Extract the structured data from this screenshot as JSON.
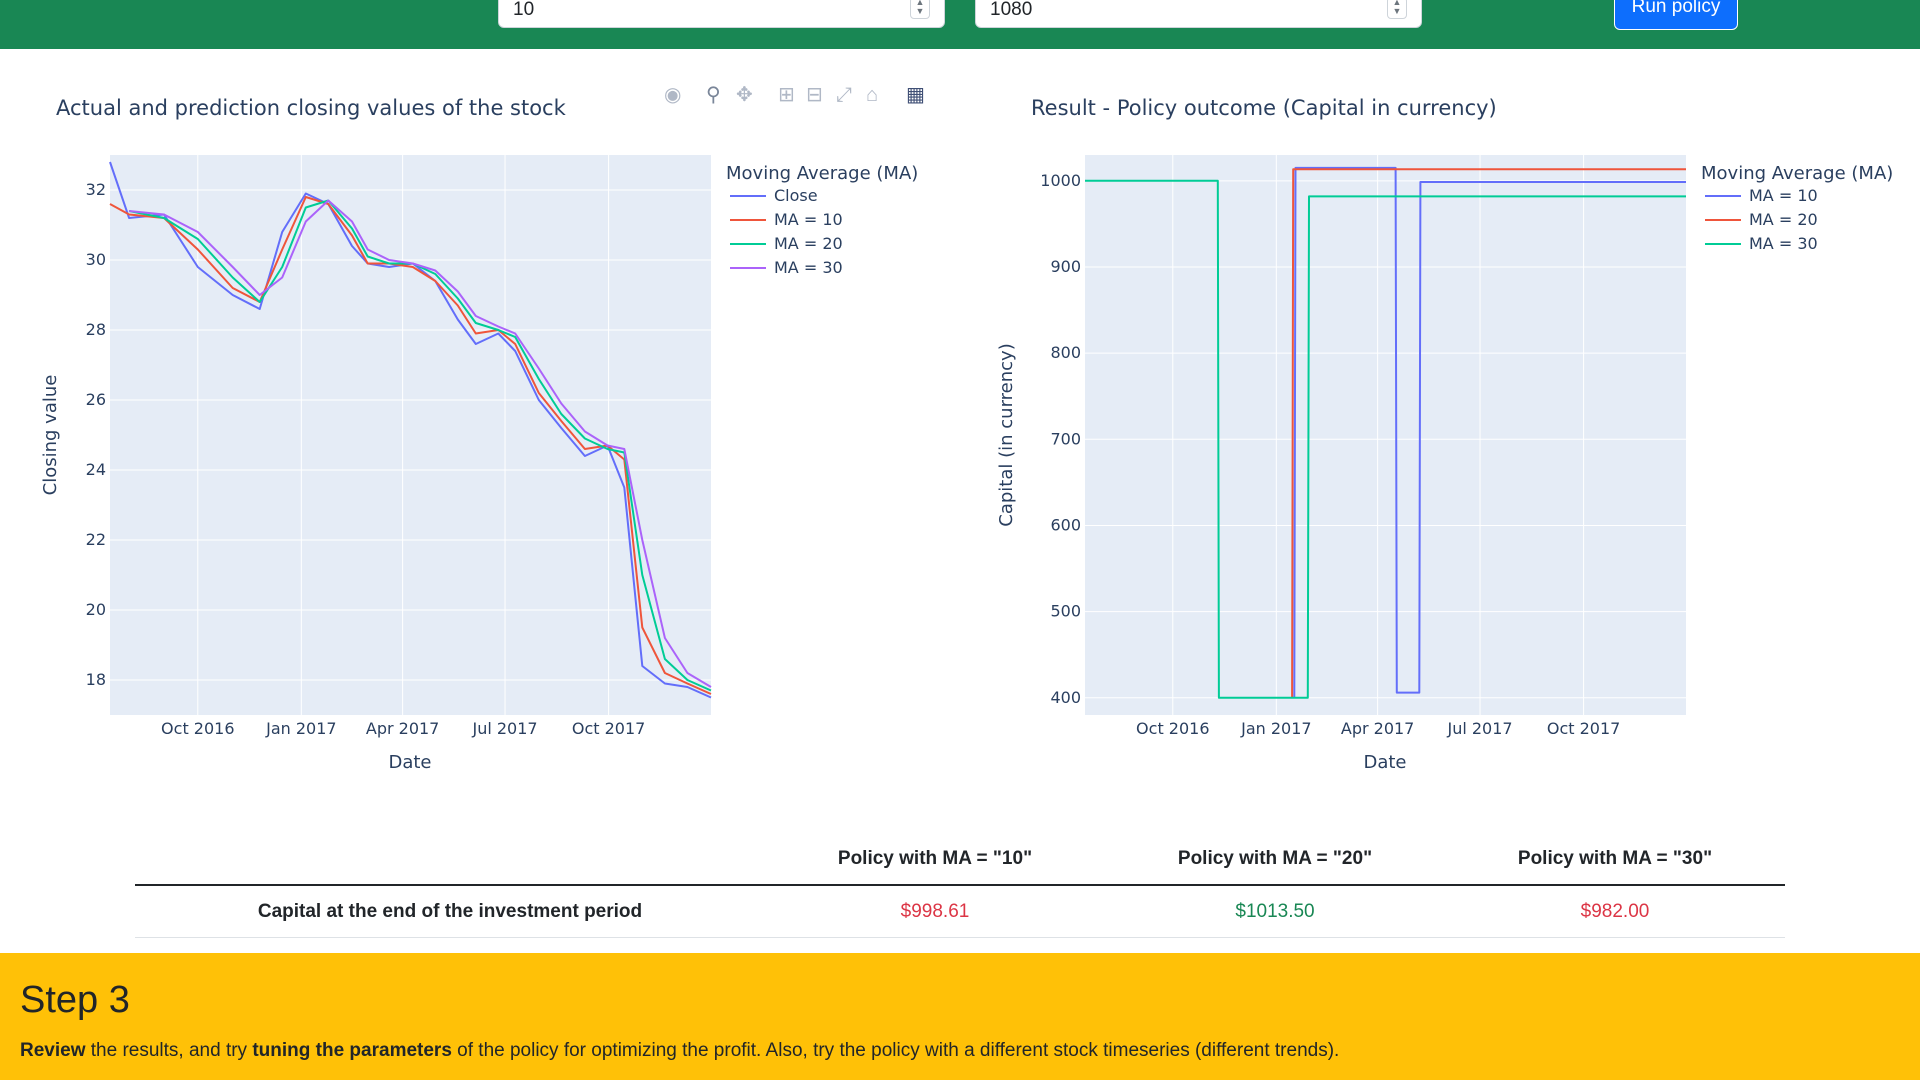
{
  "header": {
    "input_ma_value": "10",
    "input_days_value": "1080",
    "run_button_label": "Run policy"
  },
  "stock_chart": {
    "title": "Actual and prediction closing values of the stock",
    "legend_title": "Moving Average (MA)",
    "legend": [
      "Close",
      "MA = 10",
      "MA = 20",
      "MA = 30"
    ],
    "xlabel": "Date",
    "ylabel": "Closing value",
    "x_ticks": [
      "Oct 2016",
      "Jan 2017",
      "Apr 2017",
      "Jul 2017",
      "Oct 2017"
    ],
    "y_ticks": [
      "18",
      "20",
      "22",
      "24",
      "26",
      "28",
      "30",
      "32"
    ]
  },
  "capital_chart": {
    "title": "Result - Policy outcome (Capital in currency)",
    "legend_title": "Moving Average (MA)",
    "legend": [
      "MA = 10",
      "MA = 20",
      "MA = 30"
    ],
    "xlabel": "Date",
    "ylabel": "Capital (in currency)",
    "x_ticks": [
      "Oct 2016",
      "Jan 2017",
      "Apr 2017",
      "Jul 2017",
      "Oct 2017"
    ],
    "y_ticks": [
      "400",
      "500",
      "600",
      "700",
      "800",
      "900",
      "1000"
    ]
  },
  "chart_data": [
    {
      "type": "line",
      "title": "Actual and prediction closing values of the stock",
      "xlabel": "Date",
      "ylabel": "Closing value",
      "xlim": [
        "2016-07-15",
        "2017-12-31"
      ],
      "ylim": [
        17,
        33
      ],
      "grid": true,
      "legend_position": "right",
      "x": [
        "2016-07-15",
        "2016-08-01",
        "2016-09-01",
        "2016-10-01",
        "2016-11-01",
        "2016-11-25",
        "2016-12-15",
        "2017-01-05",
        "2017-01-25",
        "2017-02-15",
        "2017-03-01",
        "2017-03-20",
        "2017-04-10",
        "2017-04-30",
        "2017-05-20",
        "2017-06-05",
        "2017-06-25",
        "2017-07-10",
        "2017-07-31",
        "2017-08-20",
        "2017-09-10",
        "2017-09-30",
        "2017-10-15",
        "2017-10-31",
        "2017-11-20",
        "2017-12-10",
        "2017-12-31"
      ],
      "series": [
        {
          "name": "Close",
          "color": "#636efa",
          "values": [
            32.8,
            31.2,
            31.3,
            29.8,
            29.0,
            28.6,
            30.8,
            31.9,
            31.6,
            30.4,
            29.9,
            29.8,
            29.9,
            29.4,
            28.3,
            27.6,
            27.9,
            27.4,
            26.0,
            25.2,
            24.4,
            24.7,
            23.5,
            18.4,
            17.9,
            17.8,
            17.5
          ]
        },
        {
          "name": "MA = 10",
          "color": "#ef553b",
          "values": [
            31.6,
            31.3,
            31.2,
            30.3,
            29.2,
            28.8,
            30.3,
            31.8,
            31.6,
            30.7,
            29.9,
            29.9,
            29.8,
            29.4,
            28.7,
            27.9,
            28.0,
            27.6,
            26.2,
            25.4,
            24.6,
            24.7,
            24.3,
            19.5,
            18.2,
            17.9,
            17.6
          ]
        },
        {
          "name": "MA = 20",
          "color": "#00cc96",
          "values": [
            null,
            31.4,
            31.2,
            30.6,
            29.5,
            28.8,
            29.8,
            31.5,
            31.7,
            30.9,
            30.1,
            29.9,
            29.9,
            29.6,
            28.9,
            28.2,
            28.0,
            27.8,
            26.6,
            25.6,
            24.9,
            24.6,
            24.5,
            21.0,
            18.6,
            18.0,
            17.7
          ]
        },
        {
          "name": "MA = 30",
          "color": "#ab63fa",
          "values": [
            null,
            31.4,
            31.3,
            30.8,
            29.8,
            29.0,
            29.5,
            31.1,
            31.7,
            31.1,
            30.3,
            30.0,
            29.9,
            29.7,
            29.1,
            28.4,
            28.1,
            27.9,
            26.9,
            25.9,
            25.1,
            24.7,
            24.6,
            22.0,
            19.2,
            18.2,
            17.8
          ]
        }
      ]
    },
    {
      "type": "line",
      "title": "Result - Policy outcome (Capital in currency)",
      "xlabel": "Date",
      "ylabel": "Capital (in currency)",
      "xlim": [
        "2016-07-15",
        "2017-12-31"
      ],
      "ylim": [
        380,
        1030
      ],
      "grid": true,
      "legend_position": "right",
      "line_shape": "step",
      "series": [
        {
          "name": "MA = 10",
          "color": "#636efa",
          "x": [
            "2016-07-15",
            "2017-01-17",
            "2017-01-18",
            "2017-04-17",
            "2017-04-18",
            "2017-05-08",
            "2017-05-09",
            "2017-12-31"
          ],
          "values": [
            null,
            400,
            1015,
            1015,
            406,
            406,
            998.61,
            998.61
          ]
        },
        {
          "name": "MA = 20",
          "color": "#ef553b",
          "x": [
            "2016-07-15",
            "2017-01-15",
            "2017-01-16",
            "2017-12-31"
          ],
          "values": [
            null,
            400,
            1013.5,
            1013.5
          ]
        },
        {
          "name": "MA = 30",
          "color": "#00cc96",
          "x": [
            "2016-07-15",
            "2016-11-10",
            "2016-11-11",
            "2017-01-29",
            "2017-01-30",
            "2017-12-31"
          ],
          "values": [
            1000,
            1000,
            400,
            400,
            982.0,
            982.0
          ]
        }
      ]
    }
  ],
  "results_table": {
    "headers": [
      "",
      "Policy with MA = \"10\"",
      "Policy with MA = \"20\"",
      "Policy with MA = \"30\""
    ],
    "row_label": "Capital at the end of the investment period",
    "values": [
      "$998.61",
      "$1013.50",
      "$982.00"
    ],
    "value_colors": [
      "#dc3545",
      "#198754",
      "#dc3545"
    ]
  },
  "step3": {
    "heading": "Step 3",
    "text_b1": "Review",
    "text_1": " the results, and try ",
    "text_b2": "tuning the parameters",
    "text_2": " of the policy for optimizing the profit. Also, try the policy with a different stock timeseries (different trends)."
  }
}
